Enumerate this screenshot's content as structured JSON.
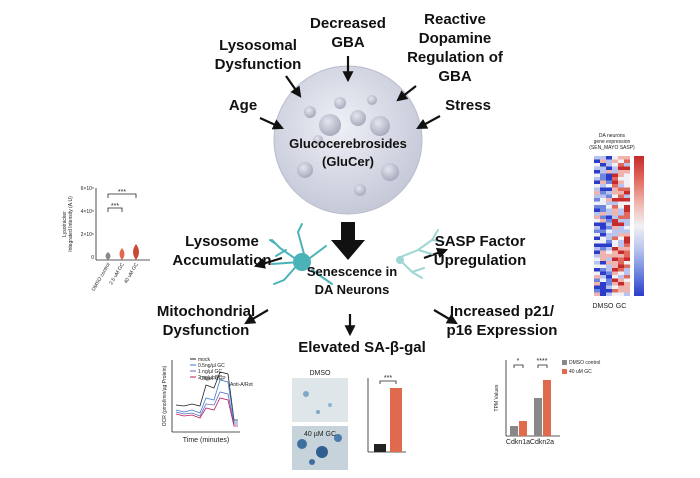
{
  "center": {
    "lines": [
      "Glucocerebrosides",
      "(GluCer)"
    ]
  },
  "causes": [
    {
      "lines": [
        "Decreased",
        "GBA"
      ]
    },
    {
      "lines": [
        "Lysosomal",
        "Dysfunction"
      ]
    },
    {
      "lines": [
        "Reactive",
        "Dopamine",
        "Regulation of",
        "GBA"
      ]
    },
    {
      "lines": [
        "Age"
      ]
    },
    {
      "lines": [
        "Stress"
      ]
    }
  ],
  "senescence": {
    "lines": [
      "Senescence in",
      "DA Neurons"
    ]
  },
  "effects": [
    {
      "lines": [
        "Lysosome",
        "Accumulation"
      ]
    },
    {
      "lines": [
        "SASP Factor",
        "Upregulation"
      ]
    },
    {
      "lines": [
        "Mitochondrial",
        "Dysfunction"
      ]
    },
    {
      "lines": [
        "Elevated SA-β-gal"
      ]
    },
    {
      "lines": [
        "Increased p21/",
        "p16 Expression"
      ]
    }
  ],
  "lysotracker_panel": {
    "y_label": [
      "Lysotracker",
      "Integrated Intensity (A.U)"
    ],
    "y_ticks": [
      "6×10⁵",
      "4×10⁵",
      "2×10⁵",
      "0"
    ],
    "x_labels": [
      "DMSO control",
      "2.5 uM GC",
      "40 uM GC"
    ],
    "significance": [
      "***",
      "***"
    ]
  },
  "heatmap_panel": {
    "title": [
      "DA neurons",
      "gene expression",
      "(SEN_MAYO SASP)"
    ],
    "x_labels": [
      "DMSO",
      "GC"
    ]
  },
  "ocr_panel": {
    "y_label": "OCR (pmol/min/µg Protein)",
    "x_label": "Time (minutes)",
    "legend": [
      "mock",
      "0.5ng/µl GC",
      "1 ng/µl GC",
      "2 ng/µl GC"
    ],
    "annotations": [
      "Oligo",
      "FCCP",
      "Anti-A/Rot"
    ]
  },
  "sabgal_panel": {
    "image_labels": [
      "DMSO",
      "40 µM GC"
    ],
    "significance": "***"
  },
  "tpm_panel": {
    "y_label": "TPM Values",
    "x_labels": [
      "Cdkn1a",
      "Cdkn2a"
    ],
    "legend": [
      "DMSO control",
      "40 uM GC"
    ],
    "significance": [
      "*",
      "****"
    ]
  }
}
